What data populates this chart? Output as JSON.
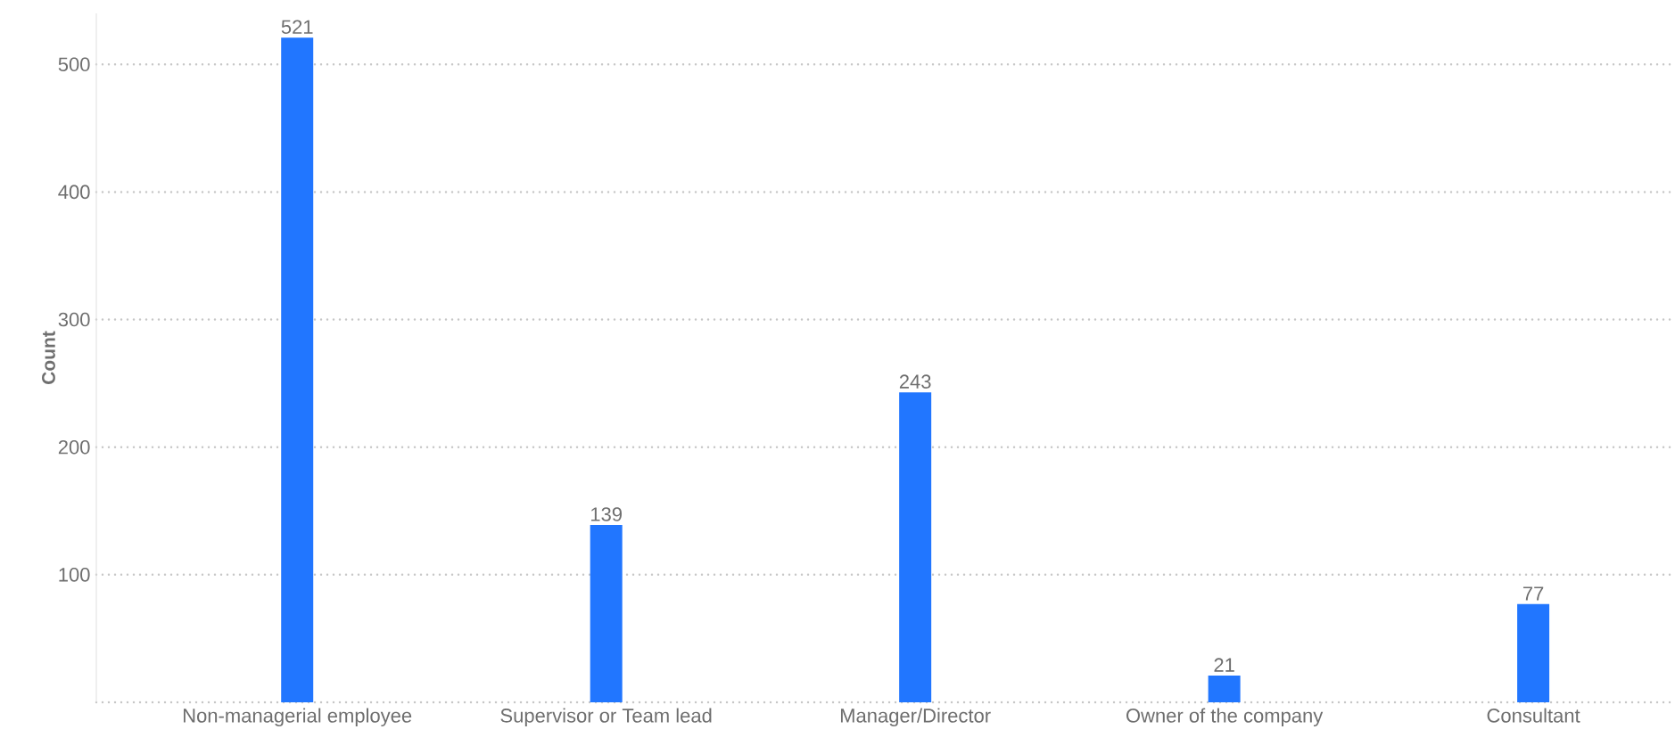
{
  "chart_data": {
    "type": "bar",
    "ylabel": "Count",
    "categories": [
      "Non-managerial employee",
      "Supervisor or Team lead",
      "Manager/Director",
      "Owner of the company",
      "Consultant"
    ],
    "values": [
      521,
      139,
      243,
      21,
      77
    ],
    "color": "#2176ff",
    "ylim": [
      0,
      540
    ],
    "yticks": [
      {
        "value": 0,
        "label": null
      },
      100,
      200,
      300,
      400,
      500
    ],
    "grid": "y",
    "data_labels": true
  }
}
